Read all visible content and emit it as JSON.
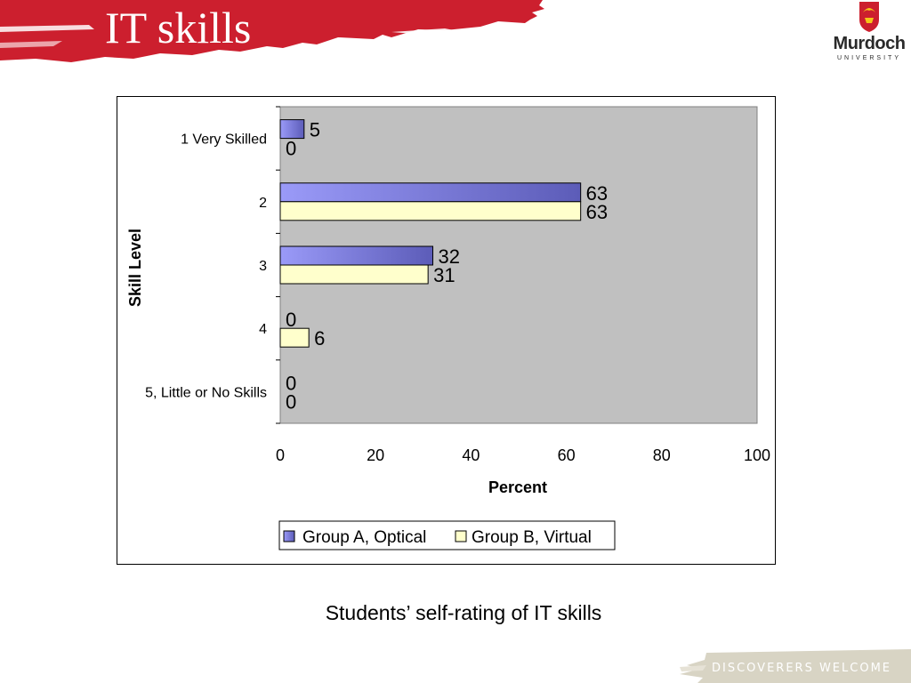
{
  "slide": {
    "title": "IT skills",
    "caption": "Students’ self-rating of IT skills",
    "logo": {
      "name": "Murdoch",
      "subtitle": "UNIVERSITY",
      "icon": "murdoch-crest-icon"
    },
    "footer": "DISCOVERERS WELCOME"
  },
  "colors": {
    "banner_red": "#cc1f2e",
    "plot_bg": "#c0c0c0",
    "series_a": "#8c8cf0",
    "series_a_dark": "#2a2a8a",
    "series_b": "#ffffcc",
    "footer_shade": "#d8d4c4"
  },
  "chart_data": {
    "type": "bar",
    "orientation": "horizontal",
    "title": "",
    "xlabel": "Percent",
    "ylabel": "Skill Level",
    "xlim": [
      0,
      100
    ],
    "xticks": [
      "0",
      "20",
      "40",
      "60",
      "80",
      "100"
    ],
    "categories": [
      "1 Very Skilled",
      "2",
      "3",
      "4",
      "5, Little or No Skills"
    ],
    "series": [
      {
        "name": "Group A, Optical",
        "values": [
          5,
          63,
          32,
          0,
          0
        ]
      },
      {
        "name": "Group B, Virtual",
        "values": [
          0,
          63,
          31,
          6,
          0
        ]
      }
    ],
    "data_labels": true,
    "grid": false,
    "legend": "bottom"
  }
}
